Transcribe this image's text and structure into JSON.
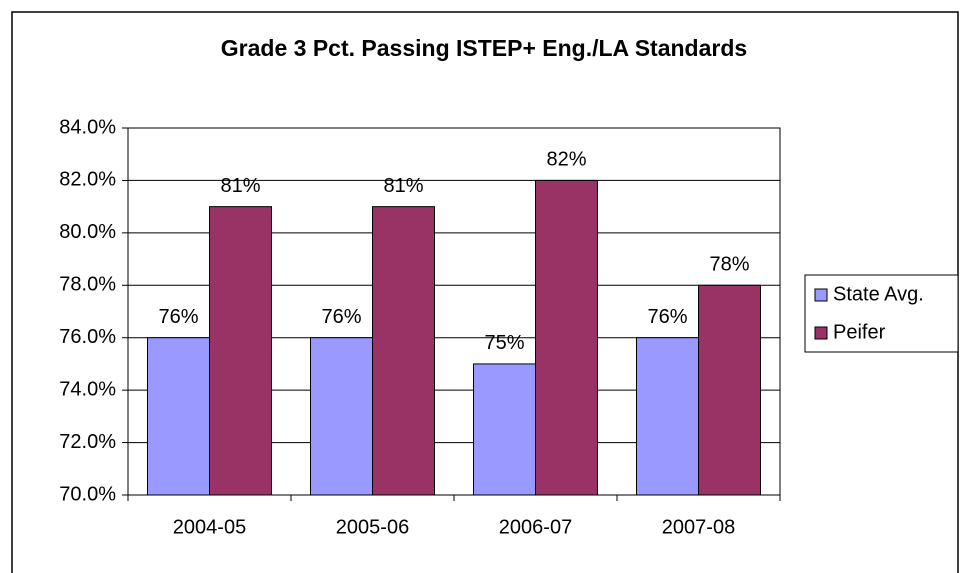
{
  "chart_data": {
    "type": "bar",
    "title": "Grade 3 Pct. Passing ISTEP+ Eng./LA Standards",
    "categories": [
      "2004-05",
      "2005-06",
      "2006-07",
      "2007-08"
    ],
    "series": [
      {
        "name": "State Avg.",
        "color": "#9999ff",
        "values": [
          76,
          76,
          75,
          76
        ],
        "value_labels": [
          "76%",
          "76%",
          "75%",
          "76%"
        ]
      },
      {
        "name": "Peifer",
        "color": "#993366",
        "values": [
          81,
          81,
          82,
          78
        ],
        "value_labels": [
          "81%",
          "81%",
          "82%",
          "78%"
        ]
      }
    ],
    "ylim": [
      70,
      84
    ],
    "yticks": [
      {
        "value": 70,
        "label": "70.0%"
      },
      {
        "value": 72,
        "label": "72.0%"
      },
      {
        "value": 74,
        "label": "74.0%"
      },
      {
        "value": 76,
        "label": "76.0%"
      },
      {
        "value": 78,
        "label": "78.0%"
      },
      {
        "value": 80,
        "label": "80.0%"
      },
      {
        "value": 82,
        "label": "82.0%"
      },
      {
        "value": 84,
        "label": "84.0%"
      }
    ],
    "grid": true,
    "legend": "right"
  }
}
